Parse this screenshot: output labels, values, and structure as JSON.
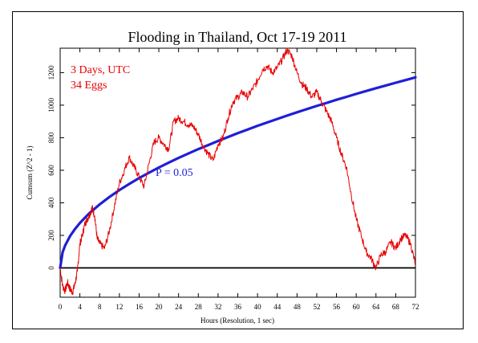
{
  "chart_data": {
    "type": "line",
    "title": "Flooding in Thailand, Oct 17-19 2011",
    "xlabel": "Hours (Resolution, 1 sec)",
    "ylabel": "Cumsum (Z^2 - 1)",
    "xlim": [
      0,
      72
    ],
    "ylim": [
      -180,
      1350
    ],
    "x_ticks": [
      0,
      4,
      8,
      12,
      16,
      20,
      24,
      28,
      32,
      36,
      40,
      44,
      48,
      52,
      56,
      60,
      64,
      68,
      72
    ],
    "y_ticks": [
      0,
      200,
      400,
      600,
      800,
      1000,
      1200
    ],
    "annotations": {
      "duration": "3 Days, UTC",
      "eggs": "34 Eggs",
      "p_label": "P = 0.05"
    },
    "colors": {
      "cumsum": "#e80000",
      "p_curve": "#1f1fd6",
      "baseline": "#000000",
      "annotation_red": "#e80000",
      "annotation_blue": "#1f1fd6"
    },
    "series": [
      {
        "key": "cumsum",
        "x": [
          0,
          0.5,
          1,
          1.5,
          2,
          2.5,
          3,
          3.5,
          4,
          4.5,
          5,
          5.5,
          6,
          6.5,
          7,
          7.5,
          8,
          9,
          10,
          11,
          12,
          13,
          14,
          15,
          16,
          17,
          18,
          19,
          20,
          21,
          22,
          23,
          24,
          25,
          26,
          27,
          28,
          29,
          30,
          31,
          32,
          33,
          34,
          35,
          36,
          37,
          38,
          39,
          40,
          41,
          42,
          43,
          44,
          45,
          46,
          47,
          48,
          49,
          50,
          51,
          52,
          53,
          54,
          55,
          56,
          57,
          58,
          59,
          60,
          61,
          62,
          63,
          64,
          65,
          66,
          67,
          68,
          69,
          70,
          71,
          72
        ],
        "values": [
          0,
          -110,
          -140,
          -90,
          -130,
          -150,
          -100,
          -20,
          150,
          200,
          270,
          300,
          330,
          370,
          320,
          180,
          150,
          120,
          230,
          380,
          520,
          600,
          680,
          620,
          560,
          500,
          640,
          770,
          800,
          760,
          730,
          900,
          920,
          900,
          880,
          870,
          820,
          750,
          700,
          660,
          760,
          800,
          920,
          1020,
          1050,
          1080,
          1050,
          1100,
          1150,
          1220,
          1240,
          1200,
          1230,
          1280,
          1340,
          1300,
          1200,
          1130,
          1100,
          1050,
          1080,
          1020,
          960,
          900,
          800,
          700,
          620,
          450,
          300,
          200,
          100,
          60,
          0,
          80,
          100,
          160,
          120,
          180,
          200,
          150,
          20
        ]
      },
      {
        "key": "p_curve",
        "label": "P = 0.05",
        "x": [
          0,
          0.5,
          1,
          2,
          3,
          4,
          5,
          6,
          8,
          10,
          12,
          14,
          16,
          18,
          20,
          22,
          24,
          26,
          28,
          30,
          32,
          34,
          36,
          38,
          40,
          42,
          44,
          46,
          48,
          50,
          52,
          54,
          56,
          58,
          60,
          62,
          64,
          66,
          68,
          70,
          72
        ],
        "values": [
          0,
          97,
          138,
          195,
          239,
          276,
          308,
          338,
          390,
          436,
          478,
          516,
          552,
          585,
          617,
          647,
          676,
          703,
          730,
          755,
          780,
          804,
          828,
          850,
          873,
          894,
          915,
          936,
          956,
          976,
          995,
          1014,
          1033,
          1051,
          1069,
          1087,
          1104,
          1121,
          1138,
          1154,
          1171
        ]
      }
    ]
  }
}
